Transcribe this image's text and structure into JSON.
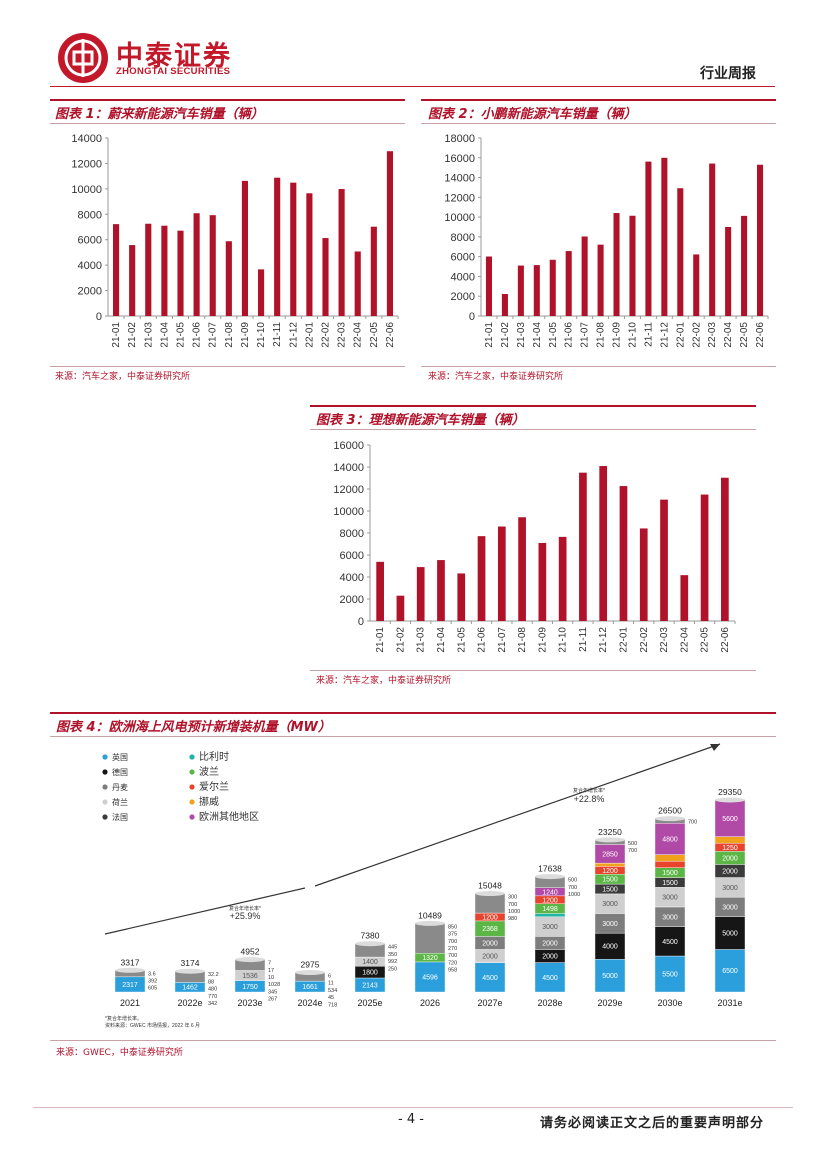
{
  "header": {
    "company_cn": "中泰证券",
    "company_en": "ZHONGTAI SECURITIES",
    "report_type": "行业周报"
  },
  "figures": {
    "fig1": {
      "title": "图表 1：蔚来新能源汽车销量（辆）",
      "source": "来源：汽车之家，中泰证券研究所"
    },
    "fig2": {
      "title": "图表 2：小鹏新能源汽车销量（辆）",
      "source": "来源：汽车之家，中泰证券研究所"
    },
    "fig3": {
      "title": "图表 3：理想新能源汽车销量（辆）",
      "source": "来源：汽车之家，中泰证券研究所"
    },
    "fig4": {
      "title": "图表 4：欧洲海上风电预计新增装机量（MW）",
      "source": "来源：GWEC，中泰证券研究所"
    }
  },
  "footer": {
    "page": "- 4 -",
    "disclaimer": "请务必阅读正文之后的重要声明部分"
  },
  "colors": {
    "brand": "#c3172a",
    "bar": "#b0122a"
  },
  "chart_data": [
    {
      "type": "bar",
      "title": "蔚来新能源汽车销量（辆）",
      "categories": [
        "21-01",
        "21-02",
        "21-03",
        "21-04",
        "21-05",
        "21-06",
        "21-07",
        "21-08",
        "21-09",
        "21-10",
        "21-11",
        "21-12",
        "22-01",
        "22-02",
        "22-03",
        "22-04",
        "22-05",
        "22-06"
      ],
      "values": [
        7225,
        5578,
        7257,
        7102,
        6711,
        8083,
        7931,
        5880,
        10628,
        3667,
        10878,
        10489,
        9652,
        6131,
        9985,
        5074,
        7024,
        12961
      ],
      "ylim": [
        0,
        14000
      ],
      "yticks": [
        0,
        2000,
        4000,
        6000,
        8000,
        10000,
        12000,
        14000
      ]
    },
    {
      "type": "bar",
      "title": "小鹏新能源汽车销量（辆）",
      "categories": [
        "21-01",
        "21-02",
        "21-03",
        "21-04",
        "21-05",
        "21-06",
        "21-07",
        "21-08",
        "21-09",
        "21-10",
        "21-11",
        "21-12",
        "22-01",
        "22-02",
        "22-03",
        "22-04",
        "22-05",
        "22-06"
      ],
      "values": [
        6015,
        2223,
        5102,
        5147,
        5686,
        6565,
        8040,
        7214,
        10412,
        10138,
        15613,
        16000,
        12922,
        6225,
        15414,
        9002,
        10125,
        15295
      ],
      "ylim": [
        0,
        18000
      ],
      "yticks": [
        0,
        2000,
        4000,
        6000,
        8000,
        10000,
        12000,
        14000,
        16000,
        18000
      ]
    },
    {
      "type": "bar",
      "title": "理想新能源汽车销量（辆）",
      "categories": [
        "21-01",
        "21-02",
        "21-03",
        "21-04",
        "21-05",
        "21-06",
        "21-07",
        "21-08",
        "21-09",
        "21-10",
        "21-11",
        "21-12",
        "22-01",
        "22-02",
        "22-03",
        "22-04",
        "22-05",
        "22-06"
      ],
      "values": [
        5379,
        2300,
        4900,
        5539,
        4323,
        7713,
        8589,
        9433,
        7094,
        7649,
        13485,
        14087,
        12268,
        8414,
        11034,
        4167,
        11496,
        13024
      ],
      "ylim": [
        0,
        16000
      ],
      "yticks": [
        0,
        2000,
        4000,
        6000,
        8000,
        10000,
        12000,
        14000,
        16000
      ]
    },
    {
      "type": "bar",
      "title": "欧洲海上风电预计新增装机量（MW）",
      "categories": [
        "2021",
        "2022e",
        "2023e",
        "2024e",
        "2025e",
        "2026",
        "2027e",
        "2028e",
        "2029e",
        "2030e",
        "2031e"
      ],
      "totals": [
        3317,
        3174,
        4952,
        2975,
        7380,
        10489,
        15048,
        17638,
        23250,
        26500,
        29350
      ],
      "side_labels": [
        [
          "3.6",
          "392",
          "605"
        ],
        [
          "32.2",
          "88",
          "480",
          "770",
          "342"
        ],
        [
          "7",
          "17",
          "10",
          "1028",
          "345",
          "267"
        ],
        [
          "6",
          "11",
          "534",
          "45",
          "718"
        ],
        [
          "445",
          "350",
          "992",
          "250"
        ],
        [
          "850",
          "375",
          "700",
          "270",
          "700",
          "720",
          "958"
        ],
        [
          "300",
          "700",
          "1000",
          "980"
        ],
        [
          "500",
          "700",
          "1000"
        ],
        [
          "500",
          "700"
        ],
        [
          "700"
        ],
        []
      ],
      "segments": [
        [
          {
            "s": "英国",
            "v": 2317,
            "t": "2317"
          }
        ],
        [
          {
            "s": "英国",
            "v": 1462,
            "t": "1462"
          }
        ],
        [
          {
            "s": "英国",
            "v": 1750,
            "t": "1750"
          },
          {
            "s": "荷兰",
            "v": 1536,
            "t": "1536"
          }
        ],
        [
          {
            "s": "英国",
            "v": 1661,
            "t": "1661"
          }
        ],
        [
          {
            "s": "英国",
            "v": 2143,
            "t": "2143"
          },
          {
            "s": "德国",
            "v": 1800,
            "t": "1800"
          },
          {
            "s": "荷兰",
            "v": 1400,
            "t": "1400"
          }
        ],
        [
          {
            "s": "英国",
            "v": 4596,
            "t": "4596"
          },
          {
            "s": "波兰",
            "v": 1320,
            "t": "1320"
          }
        ],
        [
          {
            "s": "英国",
            "v": 4500,
            "t": "4500"
          },
          {
            "s": "荷兰",
            "v": 2000,
            "t": "2000"
          },
          {
            "s": "丹麦",
            "v": 2000,
            "t": "2000"
          },
          {
            "s": "波兰",
            "v": 2368,
            "t": "2368"
          },
          {
            "s": "爱尔兰",
            "v": 1200,
            "t": "1200"
          }
        ],
        [
          {
            "s": "英国",
            "v": 4500,
            "t": "4500"
          },
          {
            "s": "德国",
            "v": 2000,
            "t": "2000"
          },
          {
            "s": "丹麦",
            "v": 2000,
            "t": "2000"
          },
          {
            "s": "荷兰",
            "v": 3000,
            "t": "3000"
          },
          {
            "s": "比利时",
            "v": 500,
            "t": ""
          },
          {
            "s": "波兰",
            "v": 1498,
            "t": "1498"
          },
          {
            "s": "爱尔兰",
            "v": 1200,
            "t": "1200"
          },
          {
            "s": "欧洲其他地区",
            "v": 1240,
            "t": "1240"
          }
        ],
        [
          {
            "s": "英国",
            "v": 5000,
            "t": "5000"
          },
          {
            "s": "德国",
            "v": 4000,
            "t": "4000"
          },
          {
            "s": "丹麦",
            "v": 3000,
            "t": "3000"
          },
          {
            "s": "荷兰",
            "v": 3000,
            "t": "3000"
          },
          {
            "s": "法国",
            "v": 1500,
            "t": "1500"
          },
          {
            "s": "波兰",
            "v": 1500,
            "t": "1500"
          },
          {
            "s": "爱尔兰",
            "v": 1200,
            "t": "1200"
          },
          {
            "s": "挪威",
            "v": 500,
            "t": ""
          },
          {
            "s": "欧洲其他地区",
            "v": 2850,
            "t": "2850"
          }
        ],
        [
          {
            "s": "英国",
            "v": 5500,
            "t": "5500"
          },
          {
            "s": "德国",
            "v": 4500,
            "t": "4500"
          },
          {
            "s": "丹麦",
            "v": 3000,
            "t": "3000"
          },
          {
            "s": "荷兰",
            "v": 3000,
            "t": "3000"
          },
          {
            "s": "法国",
            "v": 1500,
            "t": "1500"
          },
          {
            "s": "波兰",
            "v": 1500,
            "t": "1500"
          },
          {
            "s": "爱尔兰",
            "v": 1000,
            "t": "1000"
          },
          {
            "s": "挪威",
            "v": 1000,
            "t": "1000"
          },
          {
            "s": "欧洲其他地区",
            "v": 4800,
            "t": "4800"
          }
        ],
        [
          {
            "s": "英国",
            "v": 6500,
            "t": "6500"
          },
          {
            "s": "德国",
            "v": 5000,
            "t": "5000"
          },
          {
            "s": "丹麦",
            "v": 3000,
            "t": "3000"
          },
          {
            "s": "荷兰",
            "v": 3000,
            "t": "3000"
          },
          {
            "s": "法国",
            "v": 2000,
            "t": "2000"
          },
          {
            "s": "波兰",
            "v": 2000,
            "t": "2000"
          },
          {
            "s": "爱尔兰",
            "v": 1250,
            "t": "1250"
          },
          {
            "s": "挪威",
            "v": 1000,
            "t": "1000"
          },
          {
            "s": "欧洲其他地区",
            "v": 5600,
            "t": "5600"
          }
        ]
      ],
      "legend": [
        {
          "name": "英国",
          "color": "#2a9fdc"
        },
        {
          "name": "德国",
          "color": "#161616"
        },
        {
          "name": "丹麦",
          "color": "#7d7d7d"
        },
        {
          "name": "荷兰",
          "color": "#cfcfcf"
        },
        {
          "name": "法国",
          "color": "#3b3b3b"
        },
        {
          "name": "比利时",
          "color": "#21b3a6"
        },
        {
          "name": "波兰",
          "color": "#5bb646"
        },
        {
          "name": "爱尔兰",
          "color": "#e8442d"
        },
        {
          "name": "挪威",
          "color": "#f0a21c"
        },
        {
          "name": "欧洲其他地区",
          "color": "#b14aa6"
        }
      ],
      "annotations": {
        "cagr_left_label": "复合年增长率*",
        "cagr_left_value": "+25.9%",
        "cagr_right_label": "复合年增长率*",
        "cagr_right_value": "+22.8%",
        "note_1": "*复合年增长率。",
        "note_2": "资料来源：GWEC 市场情报，2022 年 6 月"
      }
    }
  ]
}
